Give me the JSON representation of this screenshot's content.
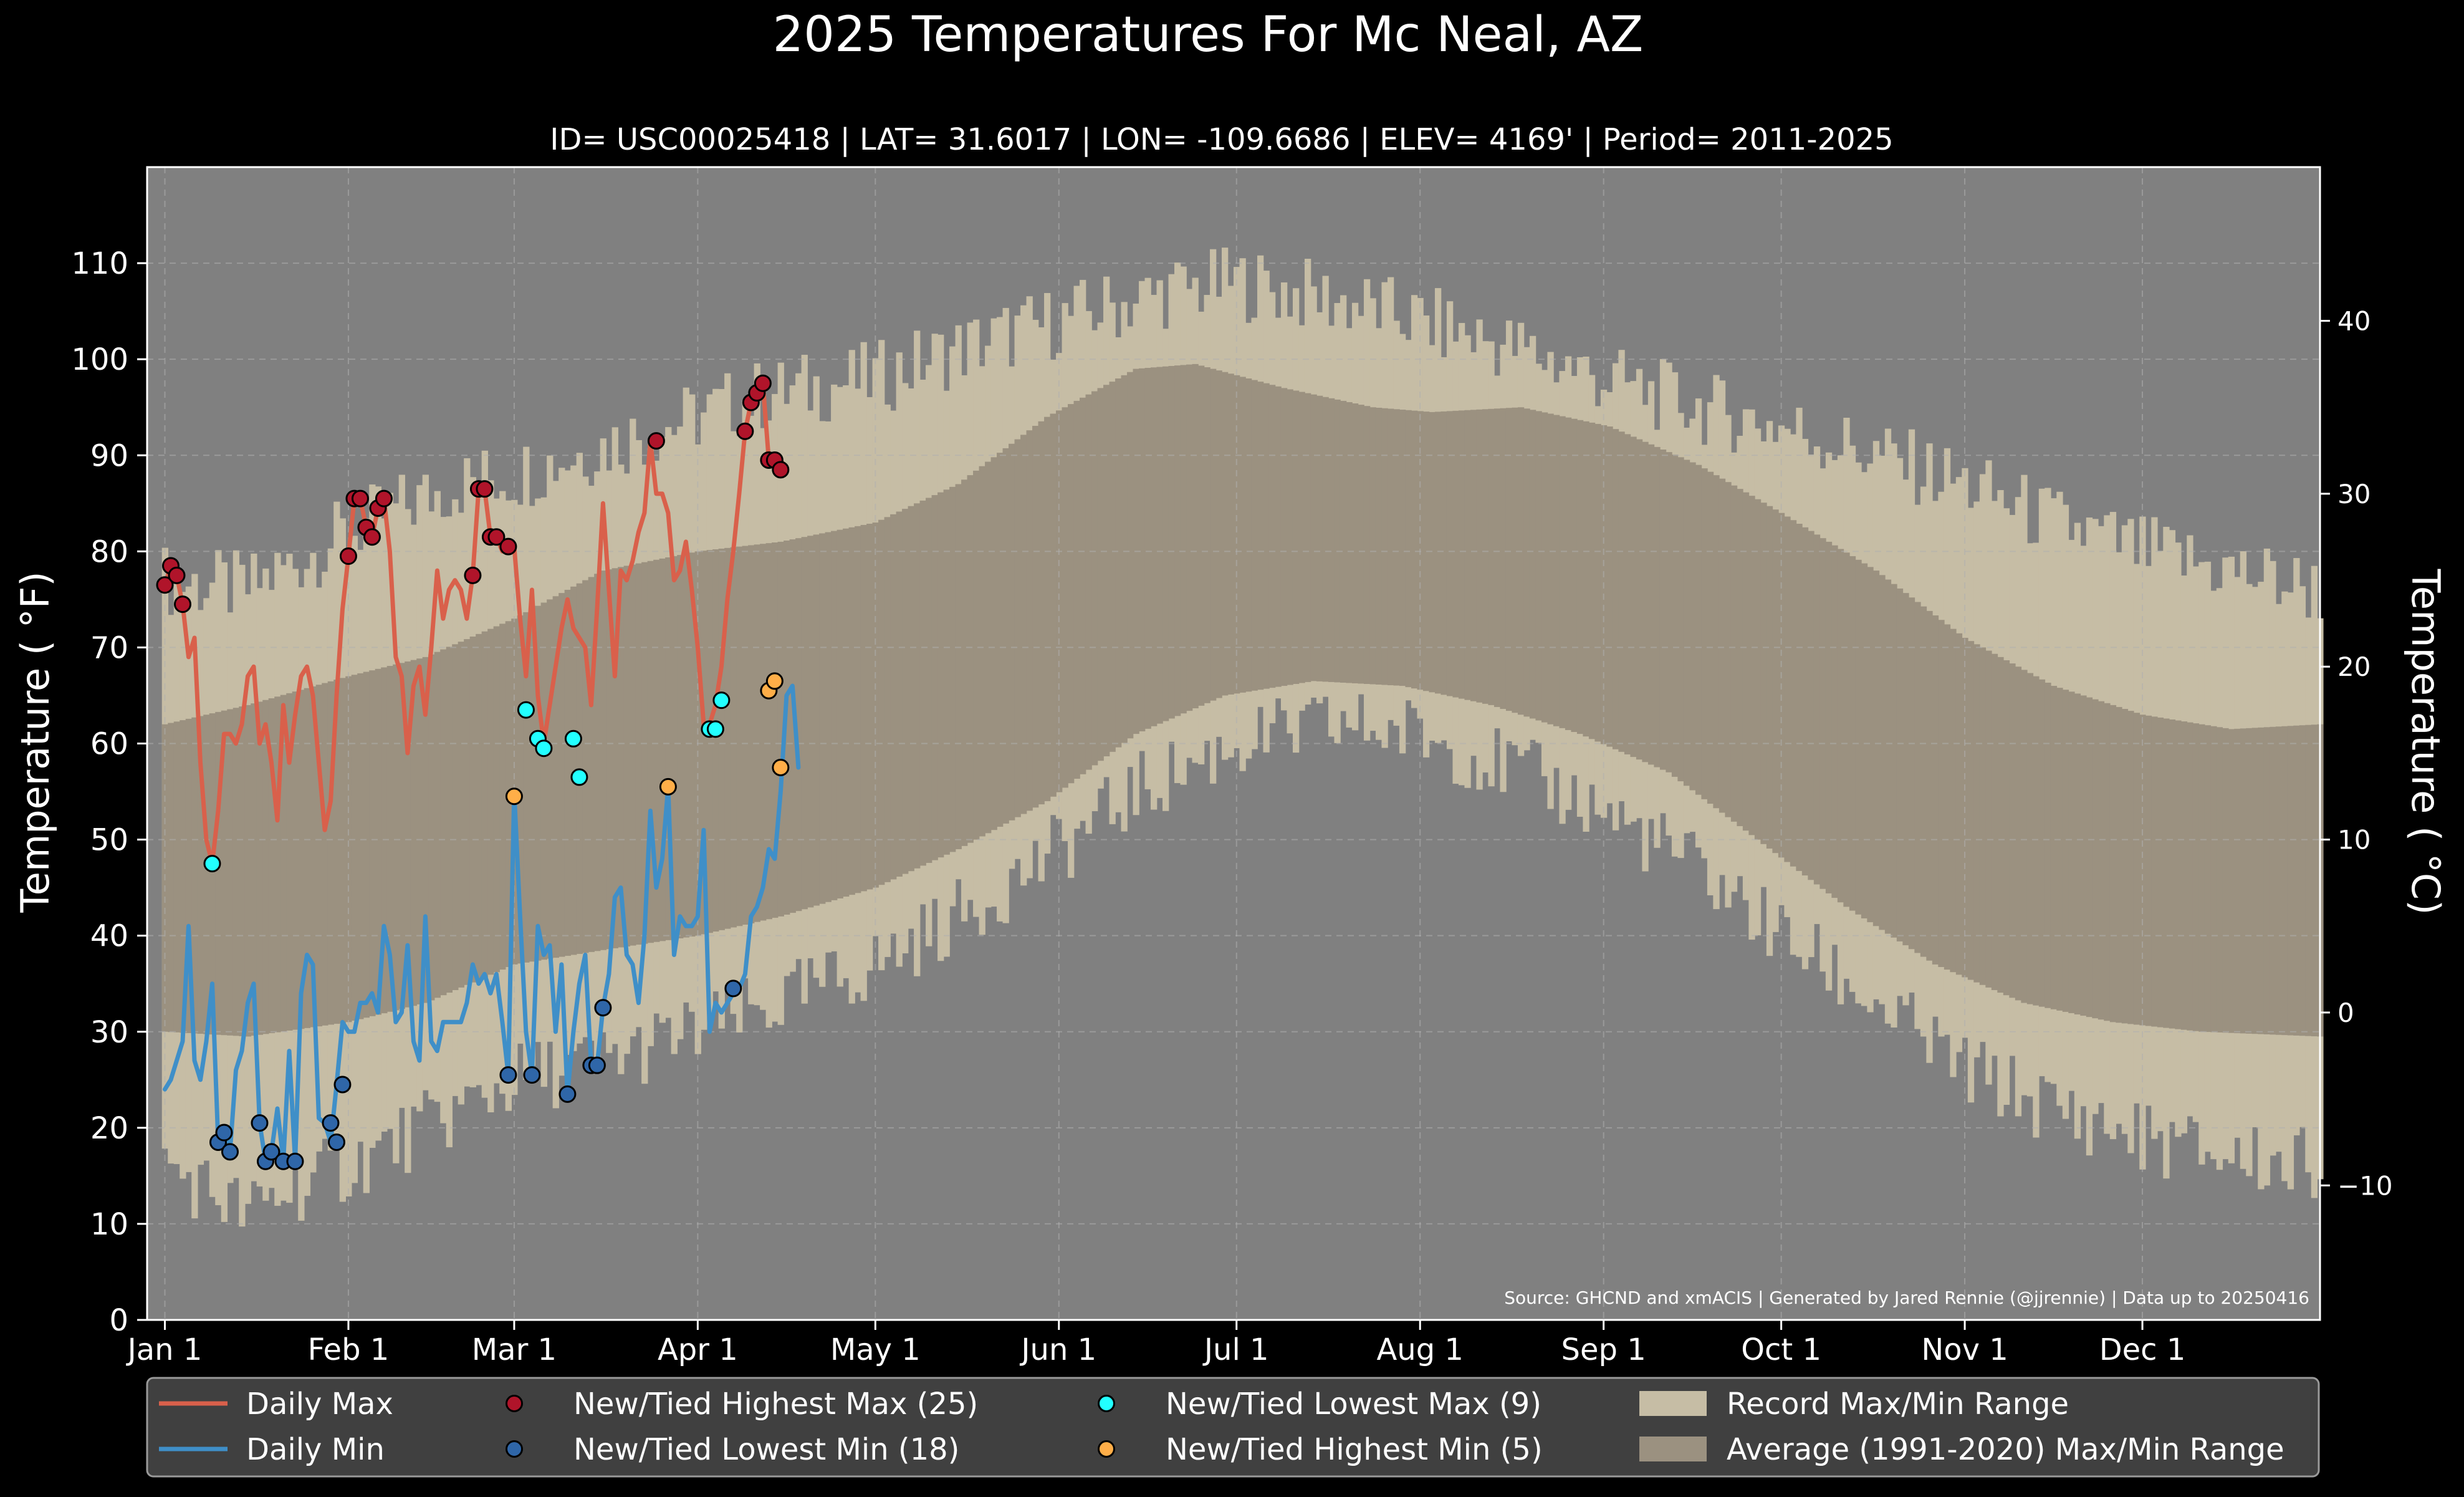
{
  "chart_data": {
    "type": "line",
    "title": "2025 Temperatures For Mc Neal, AZ",
    "subtitle": "ID= USC00025418 | LAT= 31.6017 | LON= -109.6686 | ELEV= 4169' | Period= 2011-2025",
    "ylabel": "Temperature ( °F)",
    "ylabel_right": "Temperature ( °C)",
    "source": "Source: GHCND and xmACIS | Generated by Jared Rennie (@jjrennie) | Data up to 20250416",
    "ylim": [
      0,
      120
    ],
    "xlim_day": [
      -2,
      365
    ],
    "grid": true,
    "legend_placement": "bottom",
    "x_ticks": [
      {
        "day": 1,
        "label": "Jan 1"
      },
      {
        "day": 32,
        "label": "Feb 1"
      },
      {
        "day": 60,
        "label": "Mar 1"
      },
      {
        "day": 91,
        "label": "Apr 1"
      },
      {
        "day": 121,
        "label": "May 1"
      },
      {
        "day": 152,
        "label": "Jun 1"
      },
      {
        "day": 182,
        "label": "Jul 1"
      },
      {
        "day": 213,
        "label": "Aug 1"
      },
      {
        "day": 244,
        "label": "Sep 1"
      },
      {
        "day": 274,
        "label": "Oct 1"
      },
      {
        "day": 305,
        "label": "Nov 1"
      },
      {
        "day": 335,
        "label": "Dec 1"
      }
    ],
    "y_ticks_f": [
      0,
      10,
      20,
      30,
      40,
      50,
      60,
      70,
      80,
      90,
      100,
      110
    ],
    "y_ticks_c": [
      -10,
      0,
      10,
      20,
      30,
      40
    ],
    "colors": {
      "background": "#000000",
      "plot_bg": "#808080",
      "record_band": "#c6bda5",
      "normal_band": "#9b9180",
      "daily_max": "#d9604b",
      "daily_min": "#3f8fc8",
      "highest_max": "#b0142a",
      "lowest_min": "#2f66a8",
      "lowest_max": "#22ffff",
      "highest_min": "#ffae48",
      "legend_bg": "#404040",
      "grid": "#b0b0b0"
    },
    "record_max_knots": [
      [
        1,
        77
      ],
      [
        15,
        76
      ],
      [
        32,
        82
      ],
      [
        50,
        87
      ],
      [
        60,
        88
      ],
      [
        75,
        91
      ],
      [
        91,
        94
      ],
      [
        100,
        96
      ],
      [
        110,
        97
      ],
      [
        121,
        98
      ],
      [
        135,
        101
      ],
      [
        152,
        104
      ],
      [
        170,
        107
      ],
      [
        182,
        108
      ],
      [
        200,
        106
      ],
      [
        213,
        104
      ],
      [
        230,
        101
      ],
      [
        244,
        98
      ],
      [
        260,
        95
      ],
      [
        274,
        93
      ],
      [
        290,
        90
      ],
      [
        305,
        87
      ],
      [
        320,
        83
      ],
      [
        335,
        80
      ],
      [
        350,
        78
      ],
      [
        365,
        76
      ]
    ],
    "record_min_knots": [
      [
        1,
        16
      ],
      [
        10,
        13
      ],
      [
        15,
        11
      ],
      [
        20,
        13
      ],
      [
        32,
        16
      ],
      [
        45,
        20
      ],
      [
        60,
        25
      ],
      [
        75,
        27
      ],
      [
        91,
        30
      ],
      [
        105,
        33
      ],
      [
        121,
        37
      ],
      [
        135,
        42
      ],
      [
        152,
        49
      ],
      [
        165,
        55
      ],
      [
        182,
        60
      ],
      [
        200,
        62
      ],
      [
        213,
        61
      ],
      [
        230,
        57
      ],
      [
        244,
        53
      ],
      [
        260,
        47
      ],
      [
        274,
        40
      ],
      [
        290,
        33
      ],
      [
        305,
        26
      ],
      [
        320,
        22
      ],
      [
        335,
        19
      ],
      [
        350,
        17
      ],
      [
        365,
        16
      ]
    ],
    "normal_max_knots": [
      [
        1,
        62
      ],
      [
        15,
        64
      ],
      [
        32,
        67
      ],
      [
        45,
        69
      ],
      [
        60,
        73
      ],
      [
        75,
        78
      ],
      [
        91,
        80
      ],
      [
        105,
        81
      ],
      [
        121,
        83
      ],
      [
        135,
        87
      ],
      [
        150,
        94
      ],
      [
        165,
        99
      ],
      [
        175,
        99.5
      ],
      [
        190,
        97
      ],
      [
        205,
        95
      ],
      [
        215,
        94.5
      ],
      [
        230,
        95
      ],
      [
        245,
        93
      ],
      [
        260,
        89
      ],
      [
        274,
        84
      ],
      [
        290,
        78
      ],
      [
        305,
        71
      ],
      [
        320,
        66
      ],
      [
        335,
        63
      ],
      [
        350,
        61.5
      ],
      [
        365,
        62
      ]
    ],
    "normal_min_knots": [
      [
        1,
        30
      ],
      [
        15,
        29.5
      ],
      [
        32,
        31
      ],
      [
        45,
        33
      ],
      [
        60,
        37
      ],
      [
        75,
        38.5
      ],
      [
        91,
        40
      ],
      [
        105,
        42
      ],
      [
        121,
        45
      ],
      [
        135,
        49
      ],
      [
        150,
        54
      ],
      [
        165,
        61
      ],
      [
        180,
        65
      ],
      [
        195,
        66.5
      ],
      [
        210,
        66
      ],
      [
        225,
        64
      ],
      [
        240,
        61
      ],
      [
        255,
        57
      ],
      [
        270,
        50
      ],
      [
        285,
        43
      ],
      [
        300,
        37
      ],
      [
        315,
        33
      ],
      [
        330,
        31
      ],
      [
        345,
        30
      ],
      [
        365,
        29.5
      ]
    ],
    "series": [
      {
        "name": "Daily Max",
        "values": [
          76.5,
          78.5,
          77.5,
          74.5,
          69,
          71,
          58,
          50,
          47.5,
          53,
          61,
          61,
          60,
          62,
          67,
          68,
          60,
          62,
          58,
          52,
          64,
          58,
          63,
          67,
          68,
          65,
          58,
          51,
          54,
          65,
          74,
          79.5,
          85.5,
          85.5,
          82.5,
          81.5,
          84.5,
          85.5,
          80,
          69,
          67,
          59,
          66,
          68,
          63,
          70,
          78,
          73,
          76,
          77,
          76,
          73,
          77.5,
          86.5,
          86.5,
          81.5,
          81.5,
          80,
          80.5,
          80.5,
          73,
          67,
          76,
          65,
          60,
          64,
          68,
          72,
          75,
          72,
          71,
          70,
          64,
          74,
          85,
          76,
          67,
          78,
          77,
          79,
          82,
          84,
          91.5,
          86,
          86,
          84,
          77,
          78,
          81,
          76,
          70,
          62,
          62,
          64,
          68,
          75,
          80,
          86,
          92.5,
          95.5,
          96.5,
          97.5,
          89.5,
          89.5,
          89.5,
          88.5
        ]
      },
      {
        "name": "Daily Min",
        "values": [
          24,
          25,
          27,
          29,
          41,
          27,
          25,
          29,
          35,
          18.5,
          19.5,
          17.5,
          26,
          28,
          33,
          35,
          20.5,
          16.5,
          17.5,
          22,
          16.5,
          28,
          16.5,
          34,
          38,
          37,
          21,
          20.5,
          18.5,
          24.5,
          31,
          30,
          30,
          33,
          33,
          34,
          32,
          41,
          38,
          31,
          32,
          39,
          29,
          27,
          42,
          29,
          28,
          31,
          31,
          31,
          31,
          33,
          37,
          35,
          36,
          34,
          36,
          31,
          25.5,
          55,
          42,
          30,
          25.5,
          41,
          38,
          39,
          30,
          37,
          23.5,
          30,
          35,
          38,
          26.5,
          26.5,
          32.5,
          36,
          44,
          45,
          38,
          37,
          33,
          40,
          53,
          45,
          48,
          55.5,
          38,
          42,
          41,
          41,
          42,
          51,
          30,
          33,
          32,
          33,
          34,
          34.5,
          36,
          42,
          43,
          45,
          49,
          48,
          55,
          65,
          66,
          57.5
        ]
      }
    ],
    "highest_max_points": [
      [
        1,
        76.5
      ],
      [
        2,
        78.5
      ],
      [
        3,
        77.5
      ],
      [
        4,
        74.5
      ],
      [
        32,
        79.5
      ],
      [
        33,
        85.5
      ],
      [
        34,
        85.5
      ],
      [
        35,
        82.5
      ],
      [
        36,
        81.5
      ],
      [
        37,
        84.5
      ],
      [
        38,
        85.5
      ],
      [
        53,
        77.5
      ],
      [
        54,
        86.5
      ],
      [
        55,
        86.5
      ],
      [
        56,
        81.5
      ],
      [
        57,
        81.5
      ],
      [
        59,
        80.5
      ],
      [
        84,
        91.5
      ],
      [
        99,
        92.5
      ],
      [
        100,
        95.5
      ],
      [
        101,
        96.5
      ],
      [
        102,
        97.5
      ],
      [
        103,
        89.5
      ],
      [
        104,
        89.5
      ],
      [
        105,
        88.5
      ]
    ],
    "lowest_min_points": [
      [
        10,
        18.5
      ],
      [
        11,
        19.5
      ],
      [
        12,
        17.5
      ],
      [
        17,
        20.5
      ],
      [
        18,
        16.5
      ],
      [
        19,
        17.5
      ],
      [
        21,
        16.5
      ],
      [
        23,
        16.5
      ],
      [
        29,
        20.5
      ],
      [
        30,
        18.5
      ],
      [
        31,
        24.5
      ],
      [
        59,
        25.5
      ],
      [
        63,
        25.5
      ],
      [
        69,
        23.5
      ],
      [
        73,
        26.5
      ],
      [
        74,
        26.5
      ],
      [
        75,
        32.5
      ],
      [
        97,
        34.5
      ]
    ],
    "lowest_max_points": [
      [
        9,
        47.5
      ],
      [
        62,
        63.5
      ],
      [
        64,
        60.5
      ],
      [
        65,
        59.5
      ],
      [
        70,
        60.5
      ],
      [
        71,
        56.5
      ],
      [
        93,
        61.5
      ],
      [
        94,
        61.5
      ],
      [
        95,
        64.5
      ]
    ],
    "highest_min_points": [
      [
        60,
        54.5
      ],
      [
        86,
        55.5
      ],
      [
        103,
        65.5
      ],
      [
        104,
        66.5
      ],
      [
        105,
        57.5
      ]
    ],
    "legend": [
      {
        "label": "Daily Max",
        "kind": "line",
        "color": "#d9604b"
      },
      {
        "label": "Daily Min",
        "kind": "line",
        "color": "#3f8fc8"
      },
      {
        "label": "New/Tied Highest Max (25)",
        "kind": "dot",
        "color": "#b0142a"
      },
      {
        "label": "New/Tied Lowest Min (18)",
        "kind": "dot",
        "color": "#2f66a8"
      },
      {
        "label": "New/Tied Lowest Max (9)",
        "kind": "dot",
        "color": "#22ffff"
      },
      {
        "label": "New/Tied Highest Min (5)",
        "kind": "dot",
        "color": "#ffae48"
      },
      {
        "label": "Record Max/Min Range",
        "kind": "patch",
        "color": "#c6bda5"
      },
      {
        "label": "Average (1991-2020) Max/Min Range",
        "kind": "patch",
        "color": "#9b9180"
      }
    ]
  }
}
